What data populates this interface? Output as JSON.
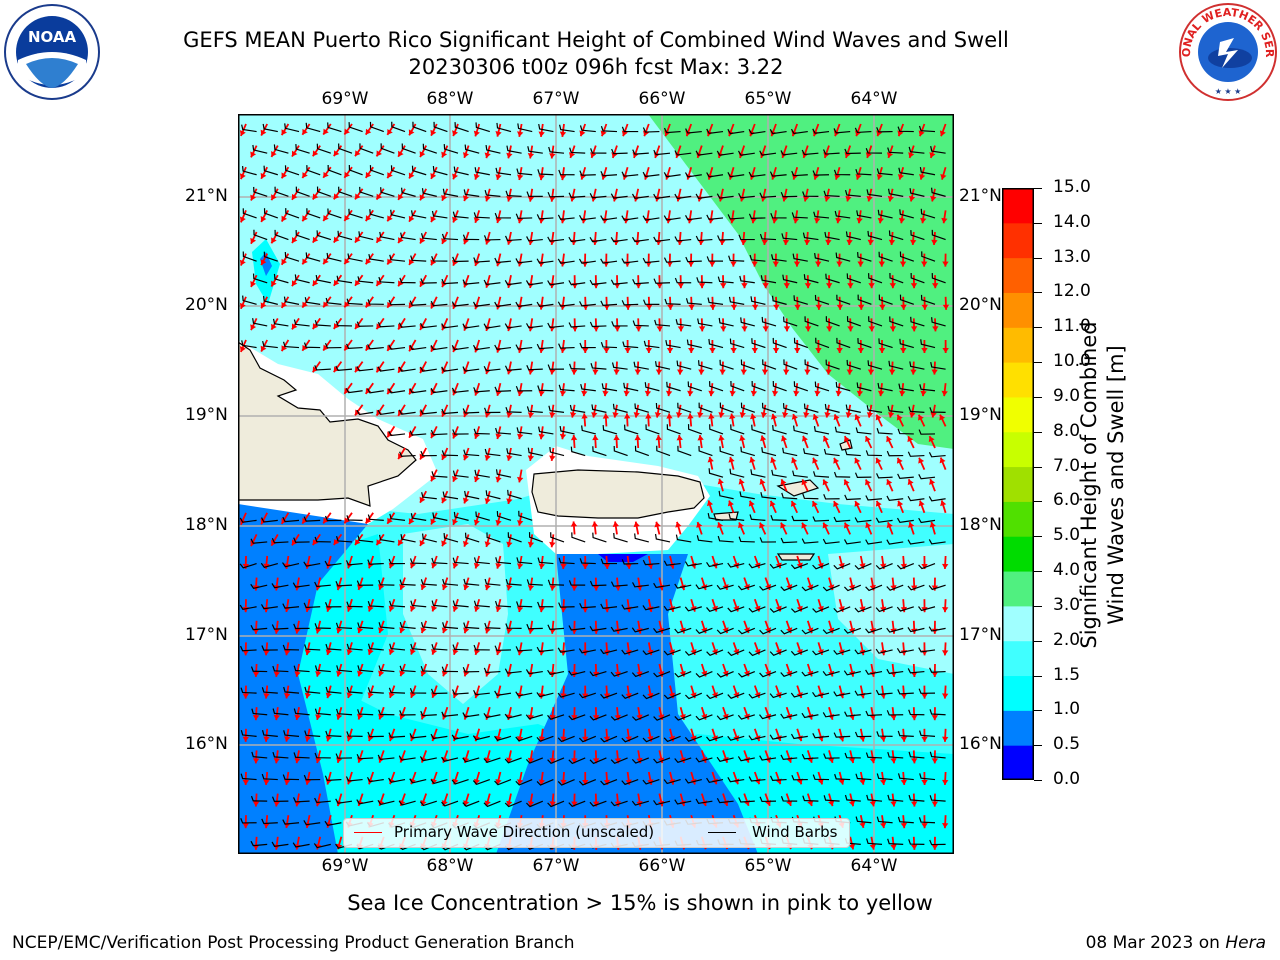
{
  "title_line1": "GEFS MEAN Puerto Rico Significant Height of Combined Wind Waves and Swell",
  "title_line2": "20230306 t00z 096h fcst   Max: 3.22",
  "logos": {
    "left": "noaa-logo",
    "right": "national-weather-service-logo",
    "noaa_text": "NOAA",
    "nws_text": "NATIONAL WEATHER SERVICE"
  },
  "lon_labels": [
    "69°W",
    "68°W",
    "67°W",
    "66°W",
    "65°W",
    "64°W"
  ],
  "lat_labels": [
    "21°N",
    "20°N",
    "19°N",
    "18°N",
    "17°N",
    "16°N"
  ],
  "map_extent": {
    "lon_min": -70.0,
    "lon_max": -63.3,
    "lat_min": 15.0,
    "lat_max": 21.75
  },
  "colorbar": {
    "label": "Significant Height of Combined Wind Waves and Swell [m]",
    "label_line1": "Significant Height of Combined",
    "label_line2": "Wind Waves and Swell [m]",
    "tick_labels": [
      "0.0",
      "0.5",
      "1.0",
      "1.5",
      "2.0",
      "3.0",
      "4.0",
      "5.0",
      "6.0",
      "7.0",
      "8.0",
      "9.0",
      "10.0",
      "11.0",
      "12.0",
      "13.0",
      "14.0",
      "15.0"
    ],
    "colors": [
      "#0000ff",
      "#0080ff",
      "#00ffff",
      "#40ffff",
      "#a0ffff",
      "#50f080",
      "#00dc00",
      "#50e000",
      "#a0e000",
      "#c8ff00",
      "#f0ff00",
      "#ffe000",
      "#ffbb00",
      "#ff9000",
      "#ff6000",
      "#ff3000",
      "#ff0000"
    ]
  },
  "legend": {
    "wave_label": "Primary Wave Direction (unscaled)",
    "wave_color": "#ff0000",
    "barb_label": "Wind Barbs",
    "barb_color": "#000000"
  },
  "sea_ice_note": "Sea Ice Concentration > 15% is shown in pink to yellow",
  "footer_left": "NCEP/EMC/Verification Post Processing Product Generation Branch",
  "footer_date": "08 Mar 2023 on ",
  "footer_machine": "Hera",
  "fill_colors": {
    "land": "#efecdc",
    "deep": "#0080ff",
    "mid": "#00ffff",
    "light": "#40ffff",
    "pale": "#a0ffff",
    "green": "#50f080"
  }
}
